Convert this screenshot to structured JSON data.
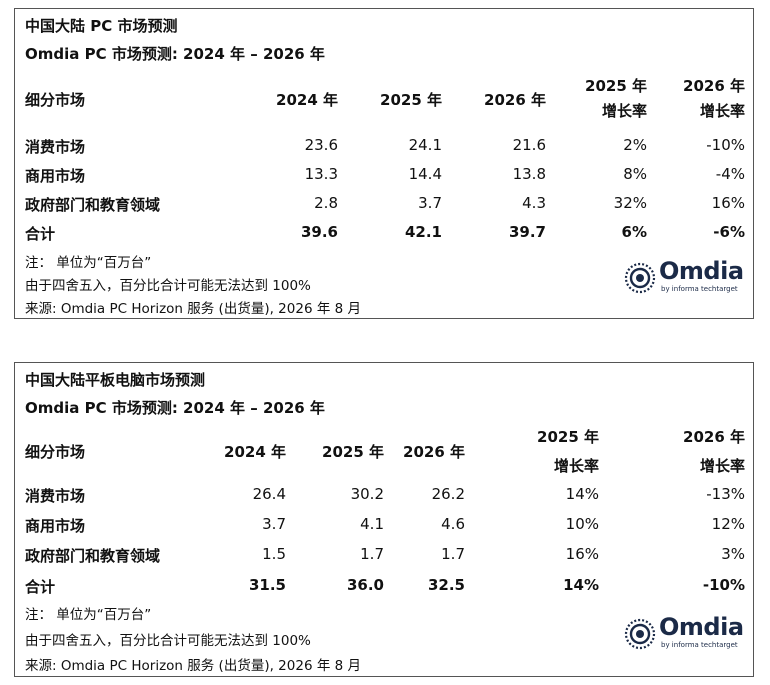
{
  "tables": [
    {
      "title": "中国大陆 PC 市场预测",
      "subtitle": "Omdia PC 市场预测: 2024 年 – 2026 年",
      "columns": [
        "细分市场",
        "2024 年",
        "2025 年",
        "2026 年"
      ],
      "growth_headers": [
        {
          "year": "2025 年",
          "label": "增长率"
        },
        {
          "year": "2026 年",
          "label": "增长率"
        }
      ],
      "rows": [
        {
          "segment": "消费市场",
          "y2024": "23.6",
          "y2025": "24.1",
          "y2026": "21.6",
          "g2025": "2%",
          "g2026": "-10%"
        },
        {
          "segment": "商用市场",
          "y2024": "13.3",
          "y2025": "14.4",
          "y2026": "13.8",
          "g2025": "8%",
          "g2026": "-4%"
        },
        {
          "segment": "政府部门和教育领域",
          "y2024": "2.8",
          "y2025": "3.7",
          "y2026": "4.3",
          "g2025": "32%",
          "g2026": "16%"
        },
        {
          "segment": "合计",
          "y2024": "39.6",
          "y2025": "42.1",
          "y2026": "39.7",
          "g2025": "6%",
          "g2026": "-6%"
        }
      ],
      "notes": [
        "注：  单位为“百万台”",
        "由于四舍五入，百分比合计可能无法达到 100%",
        "来源: Omdia PC Horizon 服务 (出货量), 2026 年 8 月"
      ],
      "logo": {
        "brand": "Omdia",
        "tagline": "by informa techtarget",
        "icon": "omdia-logo-icon"
      }
    },
    {
      "title": "中国大陆平板电脑市场预测",
      "subtitle": "Omdia PC 市场预测: 2024 年 – 2026 年",
      "columns": [
        "细分市场",
        "2024 年",
        "2025 年",
        "2026 年"
      ],
      "growth_headers": [
        {
          "year": "2025 年",
          "label": "增长率"
        },
        {
          "year": "2026 年",
          "label": "增长率"
        }
      ],
      "rows": [
        {
          "segment": "消费市场",
          "y2024": "26.4",
          "y2025": "30.2",
          "y2026": "26.2",
          "g2025": "14%",
          "g2026": "-13%"
        },
        {
          "segment": "商用市场",
          "y2024": "3.7",
          "y2025": "4.1",
          "y2026": "4.6",
          "g2025": "10%",
          "g2026": "12%"
        },
        {
          "segment": "政府部门和教育领域",
          "y2024": "1.5",
          "y2025": "1.7",
          "y2026": "1.7",
          "g2025": "16%",
          "g2026": "3%"
        },
        {
          "segment": "合计",
          "y2024": "31.5",
          "y2025": "36.0",
          "y2026": "32.5",
          "g2025": "14%",
          "g2026": "-10%"
        }
      ],
      "notes": [
        "注：  单位为“百万台”",
        "由于四舍五入，百分比合计可能无法达到 100%",
        "来源: Omdia PC Horizon 服务 (出货量), 2026 年 8 月"
      ],
      "logo": {
        "brand": "Omdia",
        "tagline": "by informa techtarget",
        "icon": "omdia-logo-icon"
      }
    }
  ]
}
